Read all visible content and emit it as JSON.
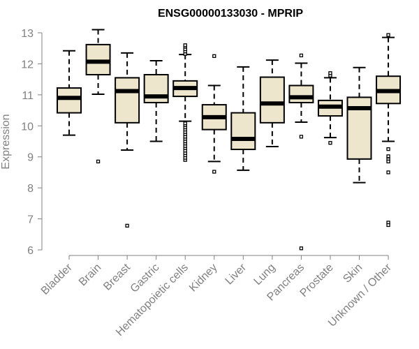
{
  "chart_data": {
    "type": "box",
    "title": "ENSG00000133030 - MPRIP",
    "xlabel": "",
    "ylabel": "Expression",
    "ylim": [
      6,
      13
    ],
    "yticks": [
      6,
      7,
      8,
      9,
      10,
      11,
      12,
      13
    ],
    "grid": false,
    "legend": "none",
    "colors": {
      "box_fill": "#ede6cd",
      "box_stroke": "#000000",
      "axis": "#808080"
    },
    "categories": [
      "Bladder",
      "Brain",
      "Breast",
      "Gastric",
      "Hematopoietic cells",
      "Kidney",
      "Liver",
      "Lung",
      "Pancreas",
      "Prostate",
      "Skin",
      "Unknown / Other"
    ],
    "boxes": [
      {
        "category": "Bladder",
        "whisker_low": 9.7,
        "q1": 10.42,
        "median": 10.9,
        "q3": 11.22,
        "whisker_high": 12.42,
        "outliers": []
      },
      {
        "category": "Brain",
        "whisker_low": 11.02,
        "q1": 11.65,
        "median": 12.07,
        "q3": 12.62,
        "whisker_high": 13.1,
        "outliers": [
          8.85
        ]
      },
      {
        "category": "Breast",
        "whisker_low": 9.22,
        "q1": 10.1,
        "median": 11.12,
        "q3": 11.55,
        "whisker_high": 12.35,
        "outliers": [
          6.78
        ]
      },
      {
        "category": "Gastric",
        "whisker_low": 9.5,
        "q1": 10.75,
        "median": 10.95,
        "q3": 11.65,
        "whisker_high": 12.1,
        "outliers": []
      },
      {
        "category": "Hematopoietic cells",
        "whisker_low": 10.15,
        "q1": 10.95,
        "median": 11.22,
        "q3": 11.45,
        "whisker_high": 12.3,
        "outliers": [
          8.9,
          8.97,
          9.05,
          9.12,
          9.2,
          9.28,
          9.35,
          9.43,
          9.5,
          9.58,
          9.65,
          9.73,
          9.8,
          9.88,
          9.95,
          10.02,
          10.08,
          12.32,
          12.4,
          12.47,
          12.55,
          12.6
        ]
      },
      {
        "category": "Kidney",
        "whisker_low": 8.85,
        "q1": 9.88,
        "median": 10.28,
        "q3": 10.68,
        "whisker_high": 11.3,
        "outliers": [
          8.52,
          12.25
        ]
      },
      {
        "category": "Liver",
        "whisker_low": 8.57,
        "q1": 9.24,
        "median": 9.58,
        "q3": 10.42,
        "whisker_high": 11.9,
        "outliers": []
      },
      {
        "category": "Lung",
        "whisker_low": 9.33,
        "q1": 10.1,
        "median": 10.72,
        "q3": 11.57,
        "whisker_high": 12.12,
        "outliers": []
      },
      {
        "category": "Pancreas",
        "whisker_low": 10.12,
        "q1": 10.75,
        "median": 10.92,
        "q3": 11.3,
        "whisker_high": 12.02,
        "outliers": [
          9.65,
          12.27,
          6.05
        ]
      },
      {
        "category": "Prostate",
        "whisker_low": 9.62,
        "q1": 10.32,
        "median": 10.62,
        "q3": 10.82,
        "whisker_high": 11.55,
        "outliers": [
          9.45,
          11.62,
          11.7
        ]
      },
      {
        "category": "Skin",
        "whisker_low": 8.17,
        "q1": 8.93,
        "median": 10.57,
        "q3": 10.92,
        "whisker_high": 11.88,
        "outliers": []
      },
      {
        "category": "Unknown / Other",
        "whisker_low": 9.5,
        "q1": 10.72,
        "median": 11.12,
        "q3": 11.6,
        "whisker_high": 12.85,
        "outliers": [
          9.25,
          9.02,
          8.92,
          8.85,
          8.5,
          6.88,
          6.8,
          12.93
        ]
      }
    ]
  }
}
